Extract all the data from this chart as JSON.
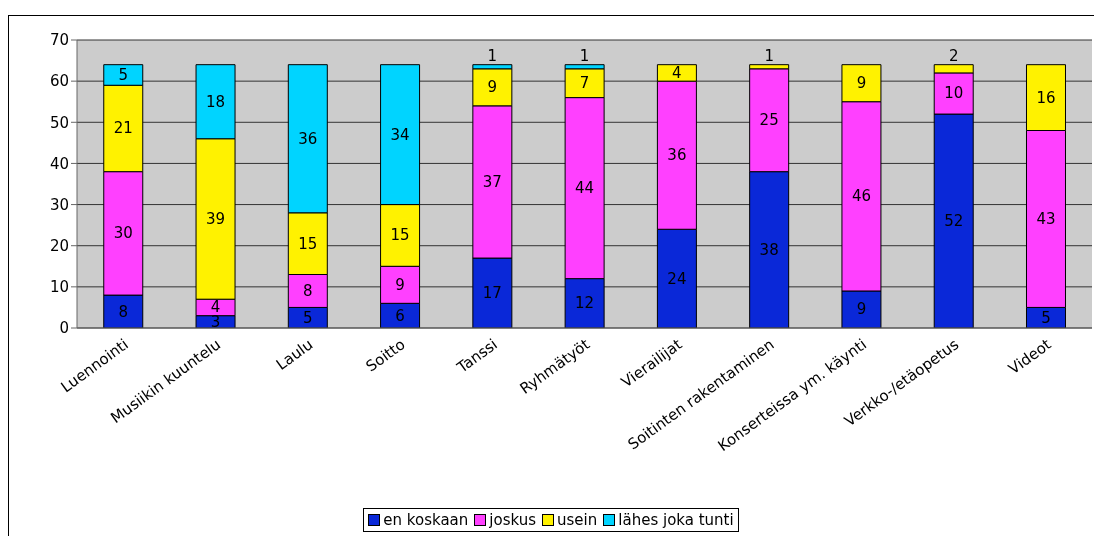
{
  "chart_data": {
    "type": "bar",
    "stacked": true,
    "categories": [
      "Luennointi",
      "Musiikin kuuntelu",
      "Laulu",
      "Soitto",
      "Tanssi",
      "Ryhmätyöt",
      "Vierailijat",
      "Soitinten rakentaminen",
      "Konserteissa ym. käynti",
      "Verkko-/etäopetus",
      "Videot"
    ],
    "series": [
      {
        "name": "en koskaan",
        "color": "#0a28d8",
        "values": [
          8,
          3,
          5,
          6,
          17,
          12,
          24,
          38,
          9,
          52,
          5
        ]
      },
      {
        "name": "joskus",
        "color": "#ff40ff",
        "values": [
          30,
          4,
          8,
          9,
          37,
          44,
          36,
          25,
          46,
          10,
          43
        ]
      },
      {
        "name": "usein",
        "color": "#fff200",
        "values": [
          21,
          39,
          15,
          15,
          9,
          7,
          4,
          1,
          9,
          2,
          16
        ]
      },
      {
        "name": "lähes joka tunti",
        "color": "#00d4ff",
        "values": [
          5,
          18,
          36,
          34,
          1,
          1,
          null,
          null,
          null,
          null,
          null
        ]
      }
    ],
    "ylim": [
      0,
      70
    ],
    "yticks": [
      0,
      10,
      20,
      30,
      40,
      50,
      60,
      70
    ],
    "grid": "y",
    "legend": "bottom",
    "data_labels": true
  }
}
